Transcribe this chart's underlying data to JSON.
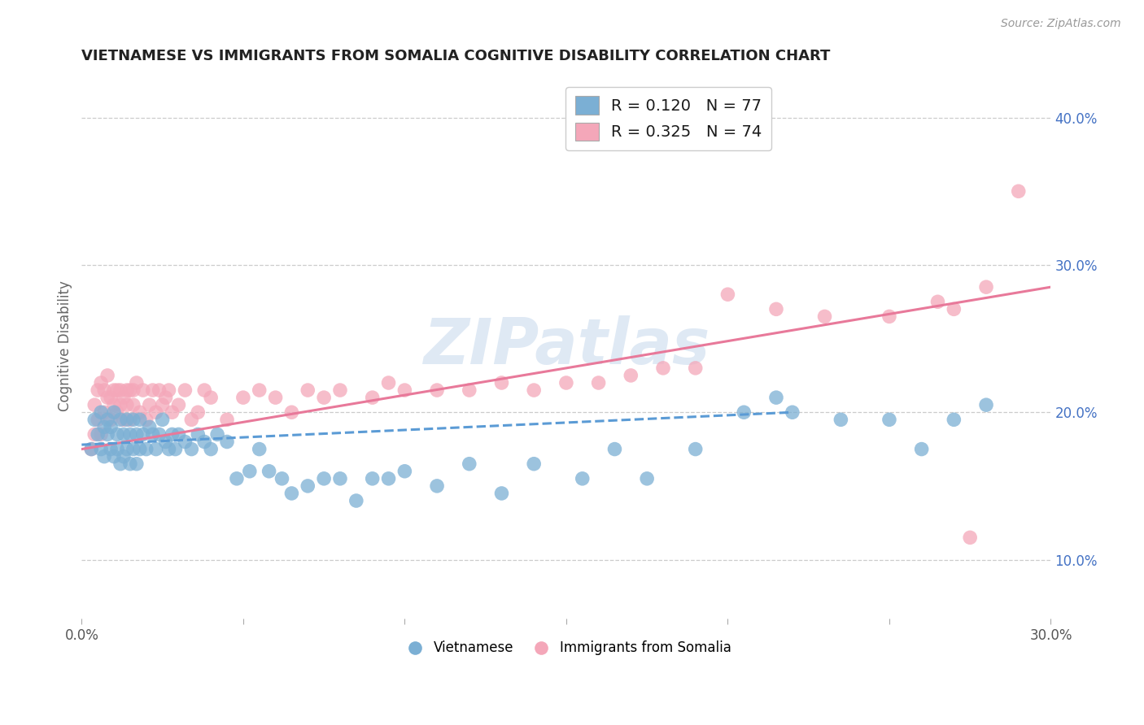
{
  "title": "VIETNAMESE VS IMMIGRANTS FROM SOMALIA COGNITIVE DISABILITY CORRELATION CHART",
  "source": "Source: ZipAtlas.com",
  "ylabel": "Cognitive Disability",
  "xlim": [
    0.0,
    0.3
  ],
  "ylim": [
    0.06,
    0.43
  ],
  "xticks": [
    0.0,
    0.05,
    0.1,
    0.15,
    0.2,
    0.25,
    0.3
  ],
  "xtick_labels": [
    "0.0%",
    "",
    "",
    "",
    "",
    "",
    "30.0%"
  ],
  "yticks_right": [
    0.1,
    0.2,
    0.3,
    0.4
  ],
  "ytick_labels_right": [
    "10.0%",
    "20.0%",
    "30.0%",
    "40.0%"
  ],
  "blue_color": "#7BAFD4",
  "pink_color": "#F4A7B9",
  "blue_line_color": "#5B9BD5",
  "pink_line_color": "#E8799A",
  "r_blue": 0.12,
  "n_blue": 77,
  "r_pink": 0.325,
  "n_pink": 74,
  "legend_label_blue": "Vietnamese",
  "legend_label_pink": "Immigrants from Somalia",
  "watermark": "ZIPatlas",
  "background_color": "#ffffff",
  "grid_color": "#cccccc",
  "title_color": "#222222",
  "blue_scatter_x": [
    0.003,
    0.004,
    0.005,
    0.006,
    0.006,
    0.007,
    0.007,
    0.008,
    0.008,
    0.009,
    0.009,
    0.01,
    0.01,
    0.011,
    0.011,
    0.012,
    0.012,
    0.013,
    0.013,
    0.014,
    0.014,
    0.015,
    0.015,
    0.016,
    0.016,
    0.017,
    0.017,
    0.018,
    0.018,
    0.019,
    0.02,
    0.021,
    0.022,
    0.023,
    0.024,
    0.025,
    0.026,
    0.027,
    0.028,
    0.029,
    0.03,
    0.032,
    0.034,
    0.036,
    0.038,
    0.04,
    0.042,
    0.045,
    0.048,
    0.052,
    0.055,
    0.058,
    0.062,
    0.065,
    0.07,
    0.075,
    0.08,
    0.085,
    0.09,
    0.095,
    0.1,
    0.11,
    0.12,
    0.13,
    0.14,
    0.155,
    0.165,
    0.175,
    0.19,
    0.205,
    0.215,
    0.22,
    0.235,
    0.25,
    0.26,
    0.27,
    0.28
  ],
  "blue_scatter_y": [
    0.175,
    0.195,
    0.185,
    0.2,
    0.175,
    0.19,
    0.17,
    0.195,
    0.185,
    0.175,
    0.19,
    0.2,
    0.17,
    0.185,
    0.175,
    0.195,
    0.165,
    0.185,
    0.17,
    0.195,
    0.175,
    0.185,
    0.165,
    0.195,
    0.175,
    0.185,
    0.165,
    0.195,
    0.175,
    0.185,
    0.175,
    0.19,
    0.185,
    0.175,
    0.185,
    0.195,
    0.18,
    0.175,
    0.185,
    0.175,
    0.185,
    0.18,
    0.175,
    0.185,
    0.18,
    0.175,
    0.185,
    0.18,
    0.155,
    0.16,
    0.175,
    0.16,
    0.155,
    0.145,
    0.15,
    0.155,
    0.155,
    0.14,
    0.155,
    0.155,
    0.16,
    0.15,
    0.165,
    0.145,
    0.165,
    0.155,
    0.175,
    0.155,
    0.175,
    0.2,
    0.21,
    0.2,
    0.195,
    0.195,
    0.175,
    0.195,
    0.205
  ],
  "pink_scatter_x": [
    0.003,
    0.004,
    0.004,
    0.005,
    0.005,
    0.006,
    0.006,
    0.007,
    0.007,
    0.008,
    0.008,
    0.009,
    0.009,
    0.01,
    0.01,
    0.011,
    0.011,
    0.012,
    0.012,
    0.013,
    0.013,
    0.014,
    0.014,
    0.015,
    0.015,
    0.016,
    0.016,
    0.017,
    0.018,
    0.019,
    0.02,
    0.021,
    0.022,
    0.023,
    0.024,
    0.025,
    0.026,
    0.027,
    0.028,
    0.03,
    0.032,
    0.034,
    0.036,
    0.038,
    0.04,
    0.045,
    0.05,
    0.055,
    0.06,
    0.065,
    0.07,
    0.075,
    0.08,
    0.09,
    0.095,
    0.1,
    0.11,
    0.12,
    0.13,
    0.14,
    0.15,
    0.16,
    0.17,
    0.18,
    0.19,
    0.2,
    0.215,
    0.23,
    0.25,
    0.265,
    0.27,
    0.275,
    0.28,
    0.29
  ],
  "pink_scatter_y": [
    0.175,
    0.185,
    0.205,
    0.195,
    0.215,
    0.185,
    0.22,
    0.2,
    0.215,
    0.21,
    0.225,
    0.195,
    0.21,
    0.205,
    0.215,
    0.2,
    0.215,
    0.205,
    0.215,
    0.21,
    0.195,
    0.215,
    0.205,
    0.195,
    0.215,
    0.205,
    0.215,
    0.22,
    0.2,
    0.215,
    0.195,
    0.205,
    0.215,
    0.2,
    0.215,
    0.205,
    0.21,
    0.215,
    0.2,
    0.205,
    0.215,
    0.195,
    0.2,
    0.215,
    0.21,
    0.195,
    0.21,
    0.215,
    0.21,
    0.2,
    0.215,
    0.21,
    0.215,
    0.21,
    0.22,
    0.215,
    0.215,
    0.215,
    0.22,
    0.215,
    0.22,
    0.22,
    0.225,
    0.23,
    0.23,
    0.28,
    0.27,
    0.265,
    0.265,
    0.275,
    0.27,
    0.115,
    0.285,
    0.35
  ],
  "blue_trend_x": [
    0.0,
    0.22
  ],
  "blue_trend_y": [
    0.178,
    0.2
  ],
  "pink_trend_x": [
    0.0,
    0.3
  ],
  "pink_trend_y": [
    0.175,
    0.285
  ]
}
